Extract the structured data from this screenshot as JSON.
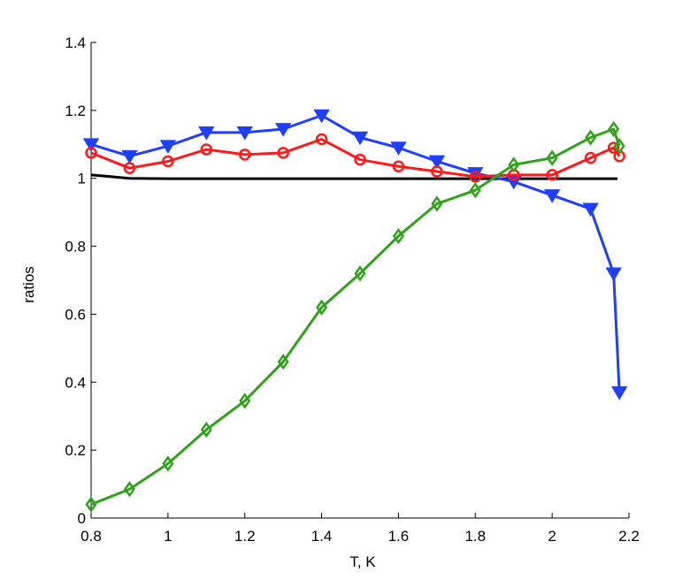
{
  "chart_data": {
    "type": "line",
    "title": "",
    "xlabel": "T, K",
    "ylabel": "ratios",
    "xlim": [
      0.8,
      2.2
    ],
    "ylim": [
      0,
      1.4
    ],
    "xticks": [
      0.8,
      1,
      1.2,
      1.4,
      1.6,
      1.8,
      2,
      2.2
    ],
    "xtick_labels": [
      "0.8",
      "1",
      "1.2",
      "1.4",
      "1.6",
      "1.8",
      "2",
      "2.2"
    ],
    "yticks": [
      0,
      0.2,
      0.4,
      0.6,
      0.8,
      1,
      1.2,
      1.4
    ],
    "ytick_labels": [
      "0",
      "0.2",
      "0.4",
      "0.6",
      "0.8",
      "1",
      "1.2",
      "1.4"
    ],
    "grid": false,
    "legend": false,
    "series": [
      {
        "color": "#000000",
        "marker": "none",
        "x": [
          0.8,
          0.85,
          0.9,
          1.0,
          1.2,
          1.4,
          1.6,
          1.8,
          2.0,
          2.17
        ],
        "y": [
          1.01,
          1.005,
          1.0,
          0.999,
          0.999,
          0.999,
          0.999,
          0.999,
          0.999,
          0.999
        ]
      },
      {
        "color": "#1f3fff",
        "marker": "triangle-down",
        "x": [
          0.8,
          0.9,
          1.0,
          1.1,
          1.2,
          1.3,
          1.4,
          1.5,
          1.6,
          1.7,
          1.8,
          1.9,
          2.0,
          2.1,
          2.16,
          2.175
        ],
        "y": [
          1.1,
          1.065,
          1.095,
          1.135,
          1.135,
          1.145,
          1.185,
          1.12,
          1.09,
          1.05,
          1.015,
          0.99,
          0.95,
          0.91,
          0.72,
          0.37
        ]
      },
      {
        "color": "#ff1a1a",
        "marker": "circle",
        "x": [
          0.8,
          0.9,
          1.0,
          1.1,
          1.2,
          1.3,
          1.4,
          1.5,
          1.6,
          1.7,
          1.8,
          1.9,
          2.0,
          2.1,
          2.16,
          2.175
        ],
        "y": [
          1.075,
          1.03,
          1.05,
          1.085,
          1.07,
          1.075,
          1.115,
          1.055,
          1.035,
          1.02,
          1.005,
          1.01,
          1.01,
          1.06,
          1.09,
          1.065
        ]
      },
      {
        "color": "#2ea31a",
        "marker": "diamond",
        "x": [
          0.8,
          0.9,
          1.0,
          1.1,
          1.2,
          1.3,
          1.4,
          1.5,
          1.6,
          1.7,
          1.8,
          1.9,
          2.0,
          2.1,
          2.16,
          2.175
        ],
        "y": [
          0.04,
          0.085,
          0.16,
          0.26,
          0.345,
          0.46,
          0.62,
          0.72,
          0.83,
          0.925,
          0.965,
          1.04,
          1.06,
          1.12,
          1.145,
          1.095
        ]
      }
    ]
  }
}
